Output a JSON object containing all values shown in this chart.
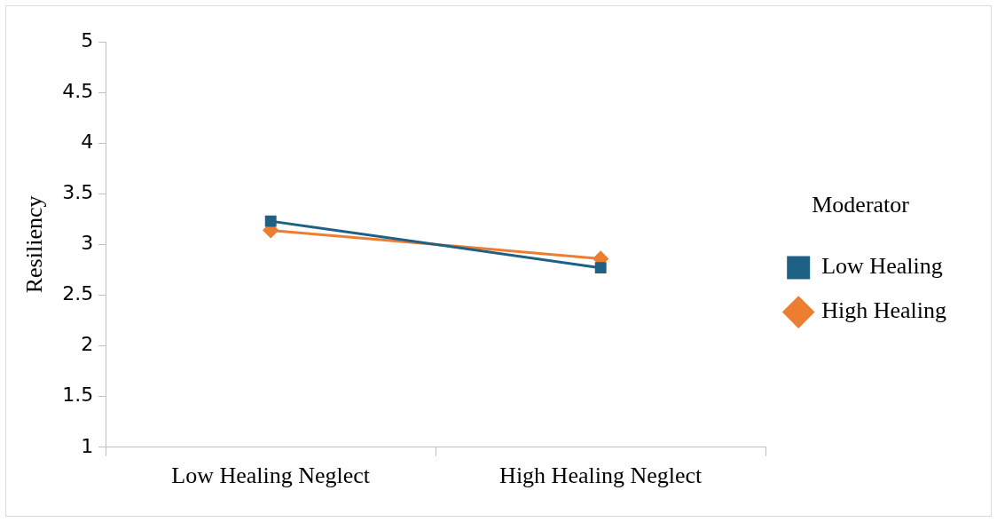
{
  "chart_data": {
    "type": "line",
    "ylabel": "Resiliency",
    "legend_title": "Moderator",
    "categories": [
      "Low Healing Neglect",
      "High Healing Neglect"
    ],
    "series": [
      {
        "name": "Low Healing",
        "color": "#1f6185",
        "marker": "square",
        "values": [
          3.23,
          2.77
        ]
      },
      {
        "name": "High Healing",
        "color": "#ed7d31",
        "marker": "diamond",
        "values": [
          3.14,
          2.86
        ]
      }
    ],
    "ylim": [
      1,
      5
    ],
    "yticks": [
      1,
      1.5,
      2,
      2.5,
      3,
      3.5,
      4,
      4.5,
      5
    ],
    "grid": false,
    "legend": "right"
  }
}
